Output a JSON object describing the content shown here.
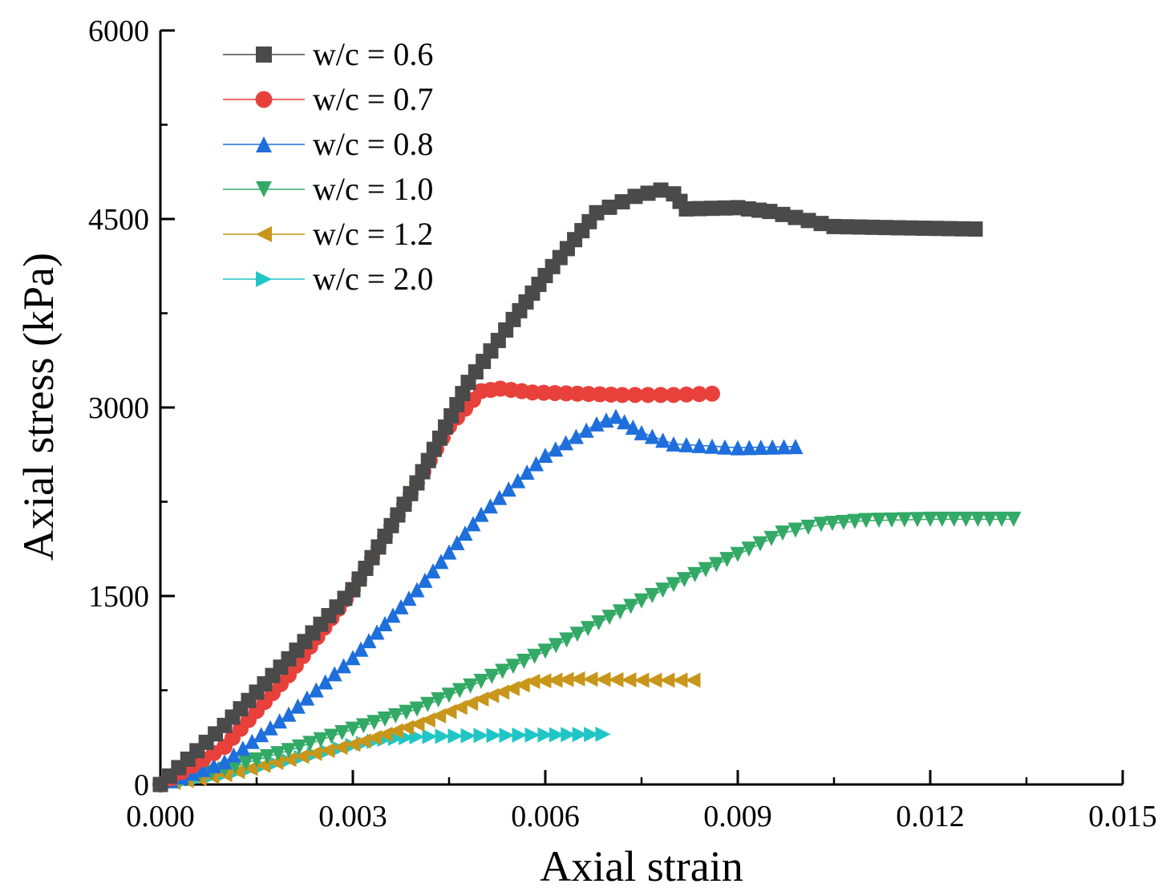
{
  "chart_data": {
    "type": "scatter",
    "title": "",
    "xlabel": "Axial strain",
    "ylabel": "Axial stress (kPa)",
    "xlim": [
      0,
      0.015
    ],
    "ylim": [
      0,
      6000
    ],
    "xticks": [
      "0.000",
      "0.003",
      "0.006",
      "0.009",
      "0.012",
      "0.015"
    ],
    "yticks": [
      "0",
      "1500",
      "3000",
      "4500",
      "6000"
    ],
    "legend_position": "top-left",
    "grid": false,
    "series": [
      {
        "name": "w/c = 0.6",
        "color": "#4a4a4a",
        "marker": "square",
        "x": [
          0,
          0.001,
          0.002,
          0.003,
          0.004,
          0.0048,
          0.0055,
          0.006,
          0.0068,
          0.0074,
          0.0078,
          0.008,
          0.0082,
          0.009,
          0.0095,
          0.0105,
          0.0115,
          0.0127
        ],
        "y": [
          0,
          470,
          1000,
          1550,
          2400,
          3200,
          3700,
          4050,
          4550,
          4680,
          4730,
          4700,
          4580,
          4590,
          4560,
          4440,
          4430,
          4420
        ]
      },
      {
        "name": "w/c = 0.7",
        "color": "#e8413c",
        "marker": "circle",
        "x": [
          0,
          0.001,
          0.002,
          0.003,
          0.004,
          0.0045,
          0.005,
          0.0053,
          0.0058,
          0.0065,
          0.0072,
          0.008,
          0.0086
        ],
        "y": [
          0,
          300,
          870,
          1550,
          2400,
          2850,
          3130,
          3150,
          3120,
          3110,
          3100,
          3100,
          3110
        ]
      },
      {
        "name": "w/c = 0.8",
        "color": "#1e6fdc",
        "marker": "triangle-up",
        "x": [
          0,
          0.001,
          0.002,
          0.003,
          0.004,
          0.005,
          0.006,
          0.0068,
          0.0071,
          0.0075,
          0.008,
          0.009,
          0.0099
        ],
        "y": [
          0,
          180,
          560,
          1010,
          1550,
          2150,
          2620,
          2870,
          2930,
          2800,
          2710,
          2680,
          2690
        ]
      },
      {
        "name": "w/c = 1.0",
        "color": "#33a966",
        "marker": "triangle-down",
        "x": [
          0,
          0.001,
          0.002,
          0.003,
          0.004,
          0.005,
          0.006,
          0.007,
          0.008,
          0.009,
          0.0097,
          0.0103,
          0.011,
          0.012,
          0.0133
        ],
        "y": [
          0,
          120,
          270,
          440,
          600,
          820,
          1060,
          1330,
          1590,
          1830,
          2000,
          2070,
          2100,
          2110,
          2110
        ]
      },
      {
        "name": "w/c = 1.2",
        "color": "#c8961a",
        "marker": "triangle-left",
        "x": [
          0,
          0.001,
          0.002,
          0.003,
          0.004,
          0.005,
          0.0058,
          0.0065,
          0.0075,
          0.0083
        ],
        "y": [
          0,
          80,
          200,
          320,
          480,
          680,
          820,
          840,
          830,
          830
        ]
      },
      {
        "name": "w/c = 2.0",
        "color": "#20c6c6",
        "marker": "triangle-right",
        "x": [
          0,
          0.001,
          0.002,
          0.003,
          0.0035,
          0.004,
          0.005,
          0.006,
          0.0069
        ],
        "y": [
          0,
          80,
          190,
          310,
          360,
          380,
          390,
          395,
          400
        ]
      }
    ]
  }
}
